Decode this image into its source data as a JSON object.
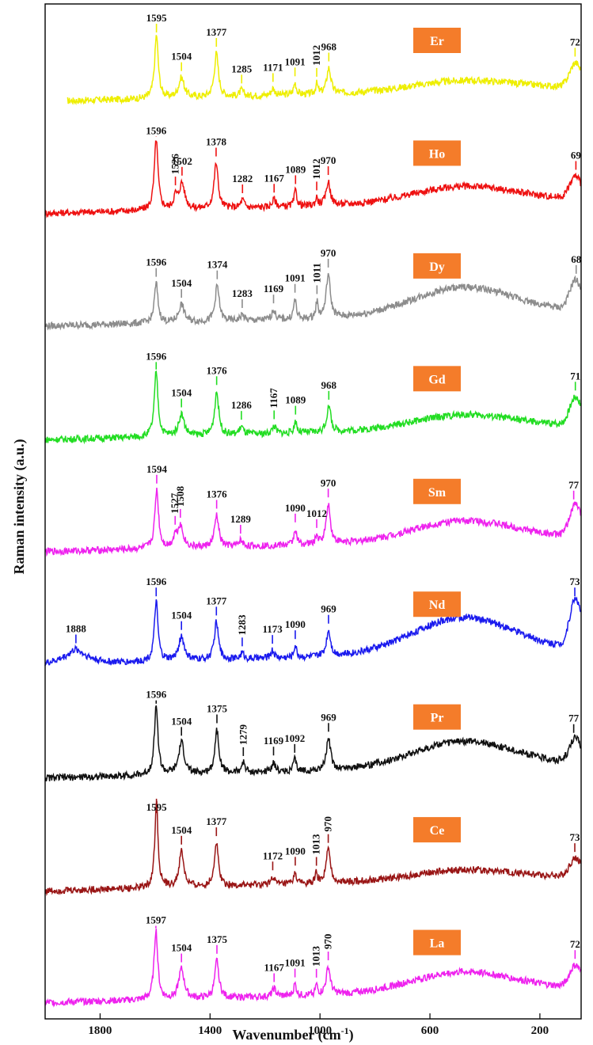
{
  "chart_data": {
    "type": "line",
    "title": "",
    "xlabel": "Wavenumber (cm⁻¹)",
    "xlabel_base": "Wavenumber (cm",
    "xlabel_sup": "-1",
    "xlabel_close": ")",
    "ylabel": "Raman intensity (a.u.)",
    "xlim": [
      2000,
      50
    ],
    "x_reversed": true,
    "xticks": [
      1800,
      1400,
      1000,
      600,
      200
    ],
    "xtick_labels": [
      "1800",
      "1400",
      "1000",
      "600",
      "200"
    ],
    "series": [
      {
        "name": "Er",
        "color": "#eeee00",
        "badge": "Er",
        "xstart": 1920,
        "base": [
          0,
          0.05,
          0.5
        ],
        "edge": 1.2,
        "peaks": [
          {
            "x": 1595,
            "label": "1595",
            "h": 3.2,
            "w": 8
          },
          {
            "x": 1504,
            "label": "1504",
            "h": 1.0,
            "w": 12
          },
          {
            "x": 1377,
            "label": "1377",
            "h": 2.2,
            "w": 9
          },
          {
            "x": 1285,
            "label": "1285",
            "h": 0.3,
            "w": 8
          },
          {
            "x": 1171,
            "label": "1171",
            "h": 0.35,
            "w": 8
          },
          {
            "x": 1091,
            "label": "1091",
            "h": 0.6,
            "w": 6
          },
          {
            "x": 1012,
            "label": "1012",
            "h": 0.5,
            "w": 5,
            "v": true
          },
          {
            "x": 968,
            "label": "968",
            "h": 1.3,
            "w": 9
          },
          {
            "x": 72,
            "label": "72",
            "h": 0,
            "w": 0
          }
        ]
      },
      {
        "name": "Ho",
        "color": "#ee1111",
        "badge": "Ho",
        "xstart": 2000,
        "base": [
          0,
          0.1,
          0.8
        ],
        "edge": 1.1,
        "peaks": [
          {
            "x": 1596,
            "label": "1596",
            "h": 3.6,
            "w": 8
          },
          {
            "x": 1526,
            "label": "1526",
            "h": 0.6,
            "w": 8,
            "v": true
          },
          {
            "x": 1502,
            "label": "1502",
            "h": 1.3,
            "w": 12
          },
          {
            "x": 1378,
            "label": "1378",
            "h": 2.3,
            "w": 9
          },
          {
            "x": 1282,
            "label": "1282",
            "h": 0.4,
            "w": 8
          },
          {
            "x": 1167,
            "label": "1167",
            "h": 0.4,
            "w": 8
          },
          {
            "x": 1089,
            "label": "1089",
            "h": 0.8,
            "w": 6
          },
          {
            "x": 1012,
            "label": "1012",
            "h": 0.4,
            "w": 5,
            "v": true
          },
          {
            "x": 970,
            "label": "970",
            "h": 1.2,
            "w": 9
          },
          {
            "x": 69,
            "label": "69",
            "h": 0,
            "w": 0
          }
        ]
      },
      {
        "name": "Dy",
        "color": "#8c8c8c",
        "badge": "Dy",
        "xstart": 2000,
        "base": [
          0,
          0.1,
          1.4
        ],
        "edge": 1.5,
        "peaks": [
          {
            "x": 1596,
            "label": "1596",
            "h": 2.0,
            "w": 8
          },
          {
            "x": 1504,
            "label": "1504",
            "h": 0.9,
            "w": 12
          },
          {
            "x": 1374,
            "label": "1374",
            "h": 1.8,
            "w": 9
          },
          {
            "x": 1283,
            "label": "1283",
            "h": 0.3,
            "w": 8
          },
          {
            "x": 1169,
            "label": "1169",
            "h": 0.5,
            "w": 8
          },
          {
            "x": 1091,
            "label": "1091",
            "h": 1.0,
            "w": 6
          },
          {
            "x": 1011,
            "label": "1011",
            "h": 0.8,
            "w": 5,
            "v": true
          },
          {
            "x": 970,
            "label": "970",
            "h": 2.2,
            "w": 9
          },
          {
            "x": 68,
            "label": "68",
            "h": 0,
            "w": 0
          }
        ]
      },
      {
        "name": "Gd",
        "color": "#22dd22",
        "badge": "Gd",
        "xstart": 2000,
        "base": [
          0,
          0.05,
          0.7
        ],
        "edge": 1.4,
        "peaks": [
          {
            "x": 1596,
            "label": "1596",
            "h": 3.3,
            "w": 8
          },
          {
            "x": 1504,
            "label": "1504",
            "h": 1.1,
            "w": 12
          },
          {
            "x": 1376,
            "label": "1376",
            "h": 2.2,
            "w": 9
          },
          {
            "x": 1286,
            "label": "1286",
            "h": 0.4,
            "w": 8
          },
          {
            "x": 1167,
            "label": "1167",
            "h": 0.4,
            "w": 8,
            "v": true
          },
          {
            "x": 1089,
            "label": "1089",
            "h": 0.6,
            "w": 6
          },
          {
            "x": 968,
            "label": "968",
            "h": 1.3,
            "w": 9
          },
          {
            "x": 71,
            "label": "71",
            "h": 0,
            "w": 0
          }
        ]
      },
      {
        "name": "Sm",
        "color": "#ee22ee",
        "badge": "Sm",
        "xstart": 2000,
        "base": [
          0,
          0.1,
          1.0
        ],
        "edge": 1.6,
        "peaks": [
          {
            "x": 1594,
            "label": "1594",
            "h": 3.0,
            "w": 8
          },
          {
            "x": 1527,
            "label": "1527",
            "h": 0.5,
            "w": 8,
            "v": true
          },
          {
            "x": 1508,
            "label": "1508",
            "h": 1.1,
            "w": 12,
            "v": true
          },
          {
            "x": 1376,
            "label": "1376",
            "h": 1.6,
            "w": 9
          },
          {
            "x": 1289,
            "label": "1289",
            "h": 0.3,
            "w": 8
          },
          {
            "x": 1090,
            "label": "1090",
            "h": 0.8,
            "w": 6
          },
          {
            "x": 1012,
            "label": "1012",
            "h": 0.4,
            "w": 5
          },
          {
            "x": 970,
            "label": "970",
            "h": 2.0,
            "w": 9
          },
          {
            "x": 77,
            "label": "77",
            "h": 0,
            "w": 0
          }
        ]
      },
      {
        "name": "Nd",
        "color": "#1a1aee",
        "badge": "Nd",
        "xstart": 2000,
        "base": [
          0.3,
          0.1,
          1.8
        ],
        "edge": 2.5,
        "peaks": [
          {
            "x": 1888,
            "label": "1888",
            "h": 0.4,
            "w": 30
          },
          {
            "x": 1596,
            "label": "1596",
            "h": 3.0,
            "w": 8
          },
          {
            "x": 1504,
            "label": "1504",
            "h": 1.2,
            "w": 12
          },
          {
            "x": 1377,
            "label": "1377",
            "h": 1.9,
            "w": 9
          },
          {
            "x": 1283,
            "label": "1283",
            "h": 0.3,
            "w": 8,
            "v": true
          },
          {
            "x": 1173,
            "label": "1173",
            "h": 0.4,
            "w": 8
          },
          {
            "x": 1090,
            "label": "1090",
            "h": 0.6,
            "w": 6
          },
          {
            "x": 969,
            "label": "969",
            "h": 1.3,
            "w": 9
          },
          {
            "x": 73,
            "label": "73",
            "h": 0,
            "w": 0
          }
        ]
      },
      {
        "name": "Pr",
        "color": "#111111",
        "badge": "Pr",
        "xstart": 2000,
        "base": [
          0,
          0.05,
          1.3
        ],
        "edge": 1.2,
        "peaks": [
          {
            "x": 1596,
            "label": "1596",
            "h": 3.5,
            "w": 8
          },
          {
            "x": 1504,
            "label": "1504",
            "h": 1.6,
            "w": 12
          },
          {
            "x": 1375,
            "label": "1375",
            "h": 2.2,
            "w": 9
          },
          {
            "x": 1279,
            "label": "1279",
            "h": 0.5,
            "w": 8,
            "v": true
          },
          {
            "x": 1169,
            "label": "1169",
            "h": 0.5,
            "w": 8
          },
          {
            "x": 1092,
            "label": "1092",
            "h": 0.6,
            "w": 6
          },
          {
            "x": 969,
            "label": "969",
            "h": 1.6,
            "w": 9
          },
          {
            "x": 77,
            "label": "77",
            "h": 0,
            "w": 0
          }
        ]
      },
      {
        "name": "Ce",
        "color": "#991515",
        "badge": "Ce",
        "xstart": 2000,
        "base": [
          0,
          0.05,
          0.5
        ],
        "edge": 0.9,
        "peaks": [
          {
            "x": 1595,
            "label": "1595",
            "h": 4.4,
            "w": 7
          },
          {
            "x": 1504,
            "label": "1504",
            "h": 1.8,
            "w": 10
          },
          {
            "x": 1377,
            "label": "1377",
            "h": 2.2,
            "w": 9
          },
          {
            "x": 1172,
            "label": "1172",
            "h": 0.4,
            "w": 8
          },
          {
            "x": 1090,
            "label": "1090",
            "h": 0.6,
            "w": 6
          },
          {
            "x": 1013,
            "label": "1013",
            "h": 0.5,
            "w": 5,
            "v": true
          },
          {
            "x": 970,
            "label": "970",
            "h": 1.7,
            "w": 9,
            "v": true
          },
          {
            "x": 73,
            "label": "73",
            "h": 0,
            "w": 0
          }
        ]
      },
      {
        "name": "La",
        "color": "#ee22ee",
        "badge": "La",
        "xstart": 2000,
        "base": [
          0,
          0.1,
          1.0
        ],
        "edge": 1.1,
        "peaks": [
          {
            "x": 1597,
            "label": "1597",
            "h": 3.5,
            "w": 8
          },
          {
            "x": 1504,
            "label": "1504",
            "h": 1.5,
            "w": 12
          },
          {
            "x": 1375,
            "label": "1375",
            "h": 1.9,
            "w": 9
          },
          {
            "x": 1167,
            "label": "1167",
            "h": 0.4,
            "w": 8
          },
          {
            "x": 1091,
            "label": "1091",
            "h": 0.6,
            "w": 6
          },
          {
            "x": 1013,
            "label": "1013",
            "h": 0.5,
            "w": 5,
            "v": true
          },
          {
            "x": 970,
            "label": "970",
            "h": 1.4,
            "w": 9,
            "v": true
          },
          {
            "x": 72,
            "label": "72",
            "h": 0,
            "w": 0
          }
        ]
      }
    ],
    "badge_color": "#f47c2a",
    "grid": false,
    "legend": "none"
  }
}
